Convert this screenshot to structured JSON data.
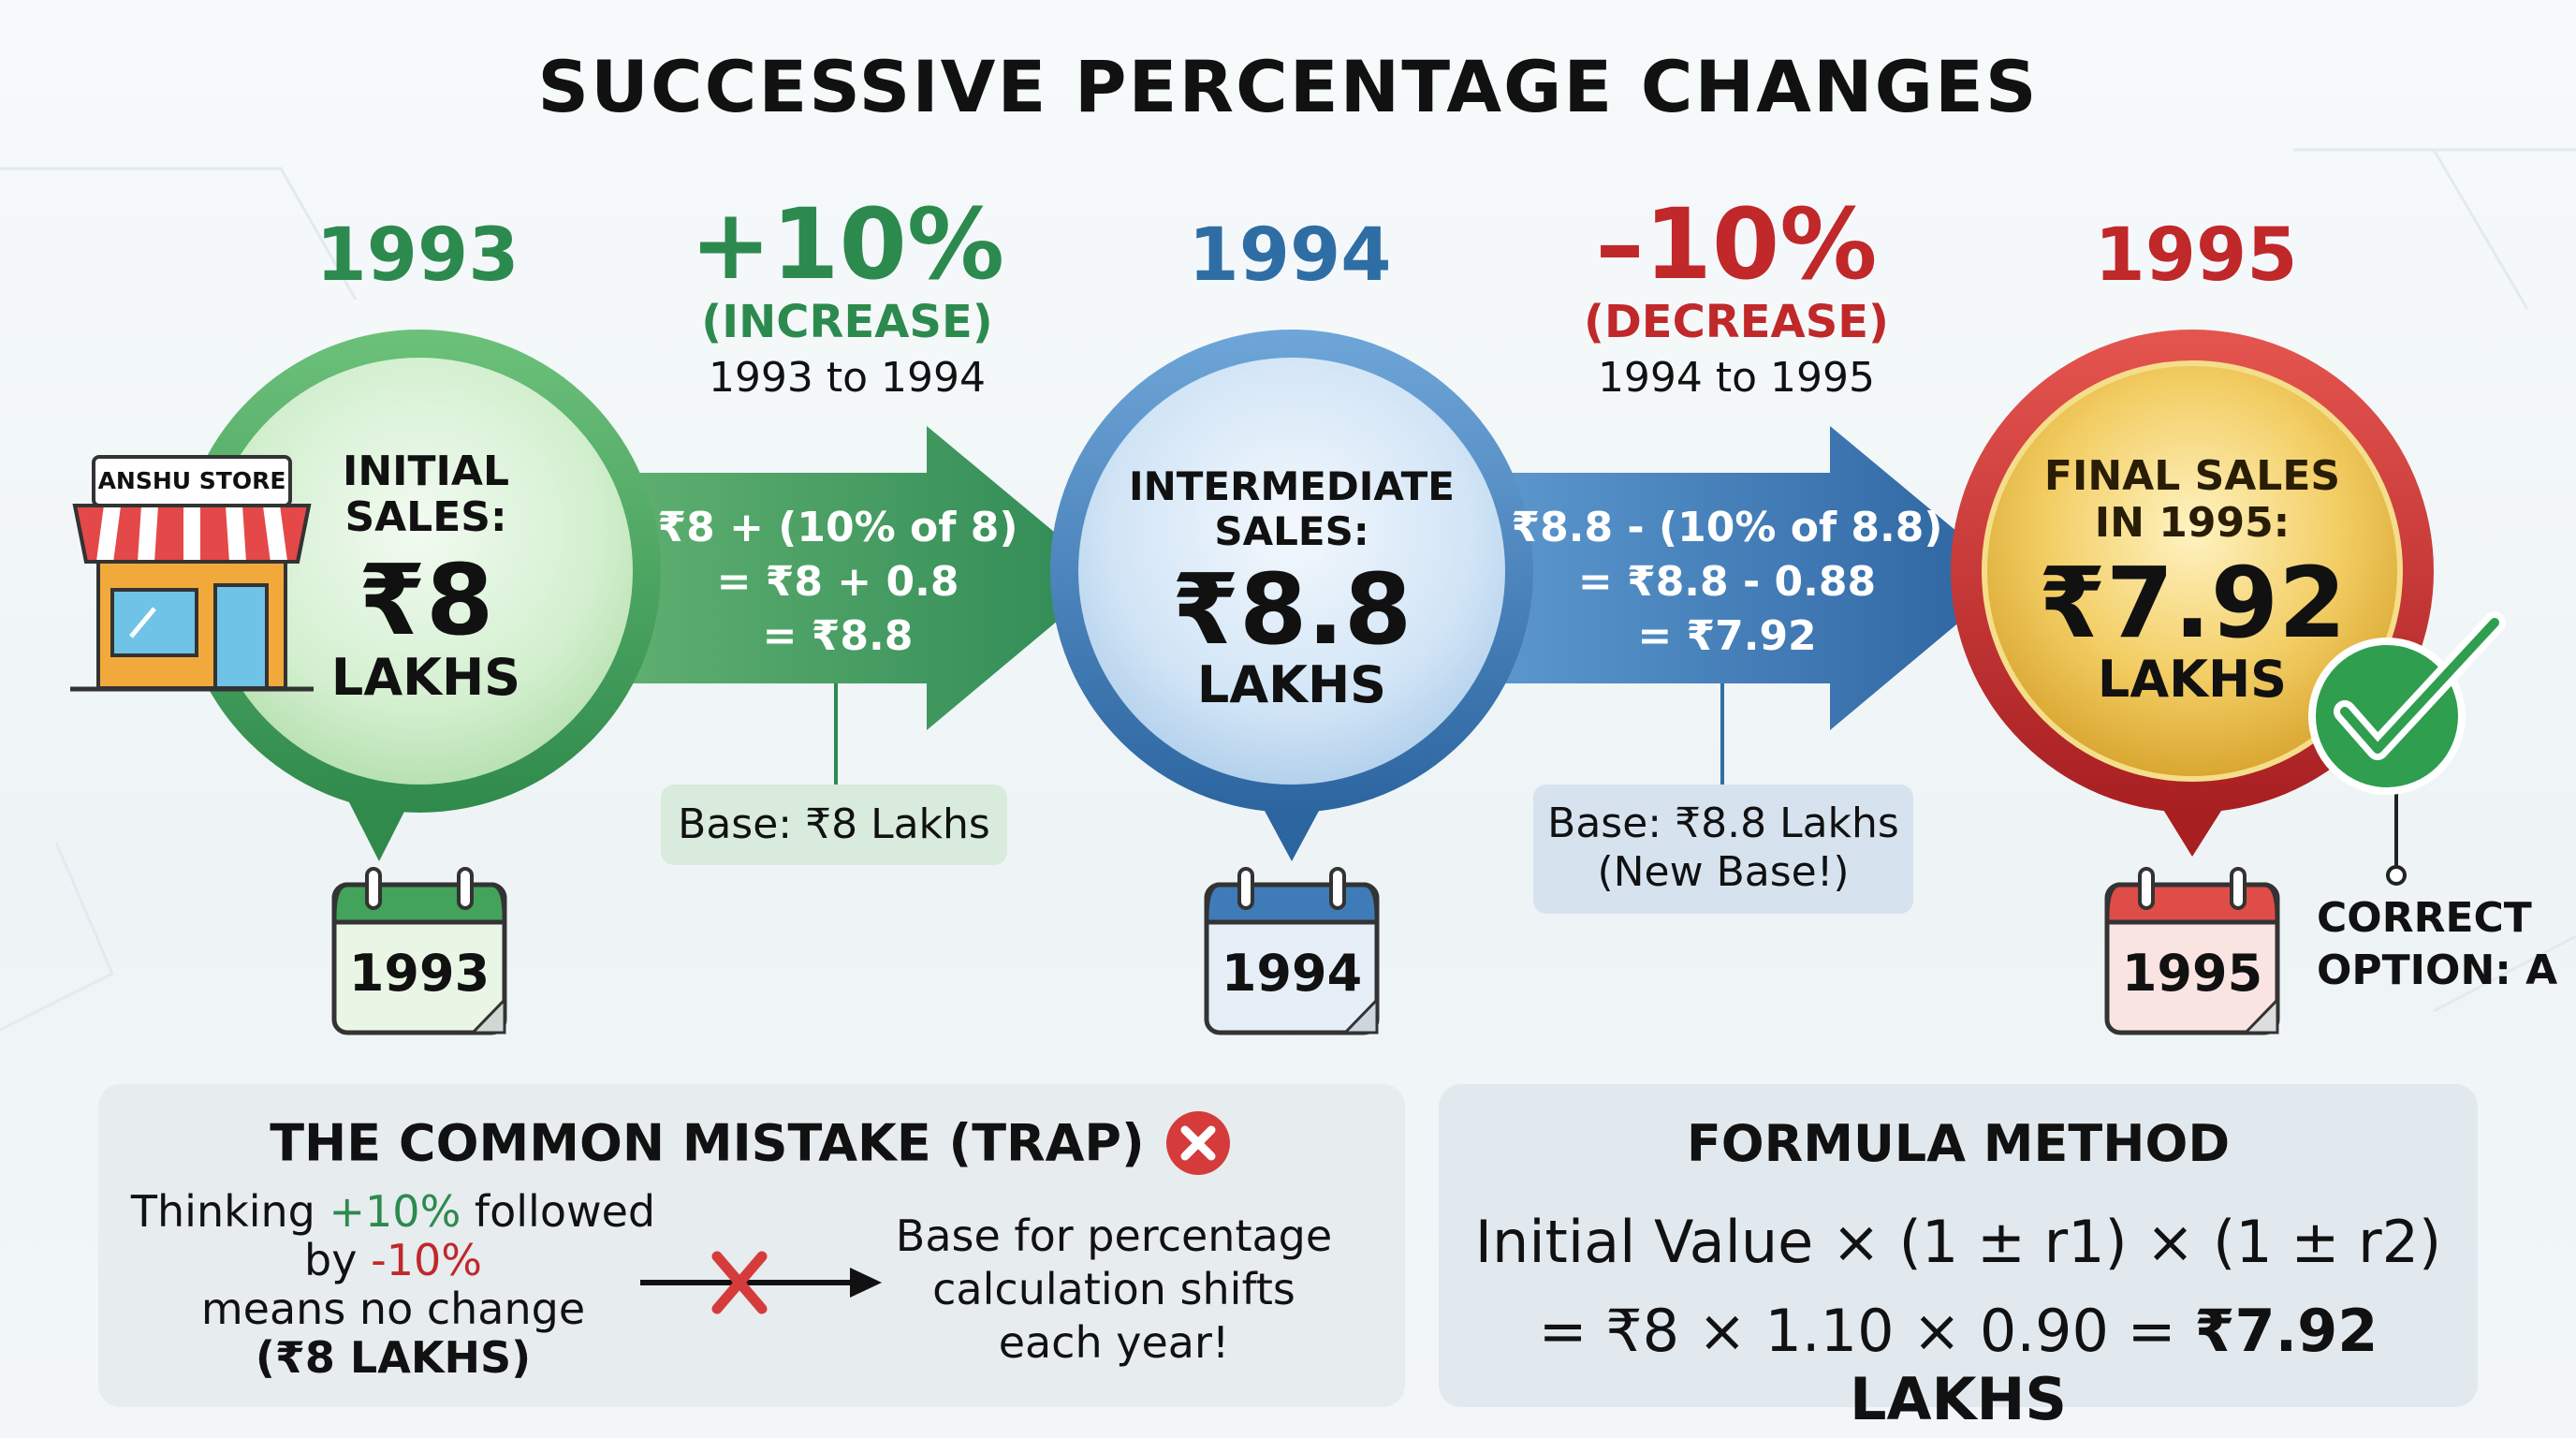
{
  "title": "SUCCESSIVE PERCENTAGE CHANGES",
  "colors": {
    "green": "#2d8a4e",
    "blue": "#2f6ea5",
    "red": "#c0282a",
    "gold": "#e2b33a"
  },
  "years": [
    "1993",
    "1994",
    "1995"
  ],
  "stage1": {
    "line1": "INITIAL",
    "line2": "SALES:",
    "value": "₹8",
    "unit": "LAKHS",
    "store": "ANSHU STORE",
    "calendar": "1993"
  },
  "change1": {
    "pct": "+10%",
    "label": "(INCREASE)",
    "range": "1993 to 1994",
    "calc": [
      "₹8 + (10% of 8)",
      "= ₹8 + 0.8",
      "= ₹8.8"
    ],
    "base": "Base: ₹8 Lakhs"
  },
  "stage2": {
    "line1": "INTERMEDIATE",
    "line2": "SALES:",
    "value": "₹8.8",
    "unit": "LAKHS",
    "calendar": "1994"
  },
  "change2": {
    "pct": "–10%",
    "label": "(DECREASE)",
    "range": "1994 to 1995",
    "calc": [
      "₹8.8 - (10% of 8.8)",
      "= ₹8.8 - 0.88",
      "= ₹7.92"
    ],
    "base_line1": "Base: ₹8.8 Lakhs",
    "base_line2": "(New Base!)"
  },
  "stage3": {
    "line1": "FINAL SALES",
    "line2": "IN 1995:",
    "value": "₹7.92",
    "unit": "LAKHS",
    "calendar": "1995"
  },
  "correct": {
    "line1": "CORRECT",
    "line2": "OPTION: A"
  },
  "mistake": {
    "heading": "THE COMMON MISTAKE (TRAP)",
    "t1": "Thinking ",
    "t1_green": "+10%",
    "t1_end": " followed",
    "t2": "by ",
    "t2_red": "-10%",
    "t3": "means no change",
    "t4": "(₹8 LAKHS)",
    "right": [
      "Base for percentage",
      "calculation shifts",
      "each year!"
    ]
  },
  "formula": {
    "heading": "FORMULA METHOD",
    "line1": "Initial Value × (1 ± r1) × (1 ± r2)",
    "line2_start": "= ₹8 × 1.10 × 0.90 = ",
    "line2_bold": "₹7.92 LAKHS"
  }
}
